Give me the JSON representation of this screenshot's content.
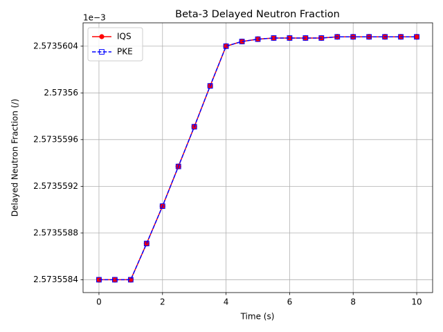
{
  "chart_data": {
    "type": "line",
    "title": "Beta-3 Delayed Neutron Fraction",
    "xlabel": "Time (s)",
    "ylabel": "Delayed Neutron Fraction (/)",
    "y_offset_label": "1e−3",
    "x": [
      0,
      0.5,
      1,
      1.5,
      2,
      2.5,
      3,
      3.5,
      4,
      4.5,
      5,
      5.5,
      6,
      6.5,
      7,
      7.5,
      8,
      8.5,
      9,
      9.5,
      10
    ],
    "series": [
      {
        "name": "IQS",
        "color": "#ff0000",
        "linestyle": "solid",
        "marker": "circle",
        "values": [
          2.5735584,
          2.5735584,
          2.5735584,
          2.57355871,
          2.57355903,
          2.57355937,
          2.57355971,
          2.57356006,
          2.5735604,
          2.57356044,
          2.57356046,
          2.57356047,
          2.57356047,
          2.57356047,
          2.57356047,
          2.57356048,
          2.57356048,
          2.57356048,
          2.57356048,
          2.57356048,
          2.57356048
        ]
      },
      {
        "name": "PKE",
        "color": "#0000ff",
        "linestyle": "dashed",
        "marker": "square",
        "values": [
          2.5735584,
          2.5735584,
          2.5735584,
          2.57355871,
          2.57355903,
          2.57355937,
          2.57355971,
          2.57356006,
          2.5735604,
          2.57356044,
          2.57356046,
          2.57356047,
          2.57356047,
          2.57356047,
          2.57356047,
          2.57356048,
          2.57356048,
          2.57356048,
          2.57356048,
          2.57356048,
          2.57356048
        ]
      }
    ],
    "xlim": [
      -0.5,
      10.5
    ],
    "xticks": [
      0,
      2,
      4,
      6,
      8,
      10
    ],
    "ylim": [
      2.57355829,
      2.5735606
    ],
    "yticks": [
      2.5735584,
      2.5735588,
      2.5735592,
      2.5735596,
      2.57356,
      2.5735604
    ],
    "grid": true,
    "legend": "upper left"
  }
}
